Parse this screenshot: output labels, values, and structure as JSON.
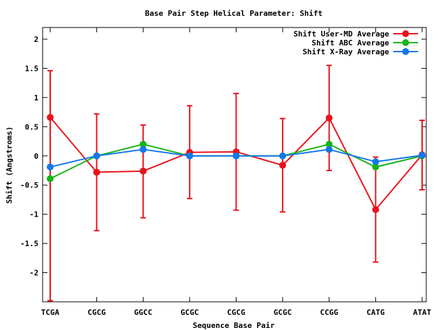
{
  "chart_data": {
    "type": "line",
    "title": "Base Pair Step Helical Parameter: Shift",
    "xlabel": "Sequence Base Pair",
    "ylabel": "Shift (Angstroms)",
    "ylim": [
      -2.5,
      2.2
    ],
    "yticks": [
      2,
      1.5,
      1,
      0.5,
      0,
      -0.5,
      -1,
      -1.5,
      -2
    ],
    "ytick_labels": [
      "2",
      "1.5",
      "1",
      "0.5",
      "0",
      "-0.5",
      "-1",
      "-1.5",
      "-2"
    ],
    "categories": [
      "TCGA",
      "CGCG",
      "GGCC",
      "GCGC",
      "CGCG",
      "GCGC",
      "CCGG",
      "CATG",
      "ATAT"
    ],
    "grid": false,
    "legend_position": "top-right",
    "series": [
      {
        "name": "Shift User-MD Average",
        "color": "#e8141c",
        "values": [
          0.66,
          -0.28,
          -0.26,
          0.06,
          0.07,
          -0.16,
          0.65,
          -0.92,
          0.02
        ],
        "error_low": [
          -2.48,
          -1.28,
          -1.06,
          -0.73,
          -0.93,
          -0.96,
          -0.25,
          -1.82,
          -0.58
        ],
        "error_high": [
          1.46,
          0.72,
          0.53,
          0.86,
          1.07,
          0.64,
          1.55,
          -0.02,
          0.61
        ]
      },
      {
        "name": "Shift ABC Average",
        "color": "#18b418",
        "values": [
          -0.39,
          0.0,
          0.2,
          0.0,
          0.0,
          0.0,
          0.2,
          -0.19,
          0.0
        ]
      },
      {
        "name": "Shift X-Ray Average",
        "color": "#1478ea",
        "values": [
          -0.19,
          0.0,
          0.11,
          0.0,
          0.0,
          0.0,
          0.11,
          -0.1,
          0.01
        ]
      }
    ]
  }
}
